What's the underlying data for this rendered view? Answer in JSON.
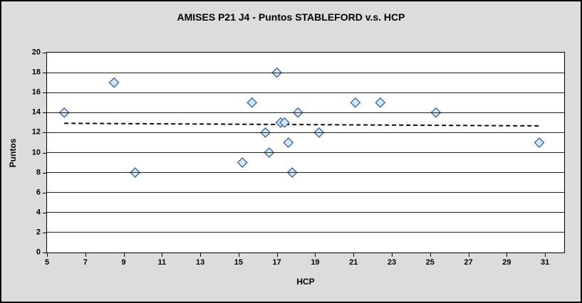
{
  "chart_data": {
    "type": "scatter",
    "title": "AMISES P21 J4 - Puntos STABLEFORD v.s. HCP",
    "xlabel": "HCP",
    "ylabel": "Puntos",
    "xlim": [
      5,
      32
    ],
    "ylim": [
      0,
      20
    ],
    "xticks": [
      5,
      7,
      9,
      11,
      13,
      15,
      17,
      19,
      21,
      23,
      25,
      27,
      29,
      31
    ],
    "yticks": [
      0,
      2,
      4,
      6,
      8,
      10,
      12,
      14,
      16,
      18,
      20
    ],
    "grid": "horizontal",
    "legend": "none",
    "series": [
      {
        "name": "Puntos STABLEFORD",
        "marker": "diamond",
        "points": [
          [
            5.9,
            14
          ],
          [
            8.5,
            17
          ],
          [
            9.6,
            8
          ],
          [
            15.2,
            9
          ],
          [
            15.7,
            15
          ],
          [
            16.4,
            12
          ],
          [
            16.6,
            10
          ],
          [
            17.0,
            18
          ],
          [
            17.2,
            13
          ],
          [
            17.4,
            13
          ],
          [
            17.6,
            11
          ],
          [
            17.8,
            8
          ],
          [
            18.1,
            14
          ],
          [
            19.2,
            12
          ],
          [
            21.1,
            15
          ],
          [
            22.4,
            15
          ],
          [
            25.3,
            14
          ],
          [
            30.7,
            11
          ]
        ]
      }
    ],
    "trendline": {
      "style": "dashed",
      "x1": 5.9,
      "y1": 12.93,
      "x2": 30.7,
      "y2": 12.67
    }
  },
  "colors": {
    "figure_bg": "#dcdcdc",
    "figure_border": "#000000",
    "plot_bg": "#ffffff",
    "grid": "#1f1f1f",
    "marker_fill": "#cdeaf8",
    "marker_stroke": "#4a65ab",
    "trendline": "#111111",
    "text": "#000000"
  }
}
